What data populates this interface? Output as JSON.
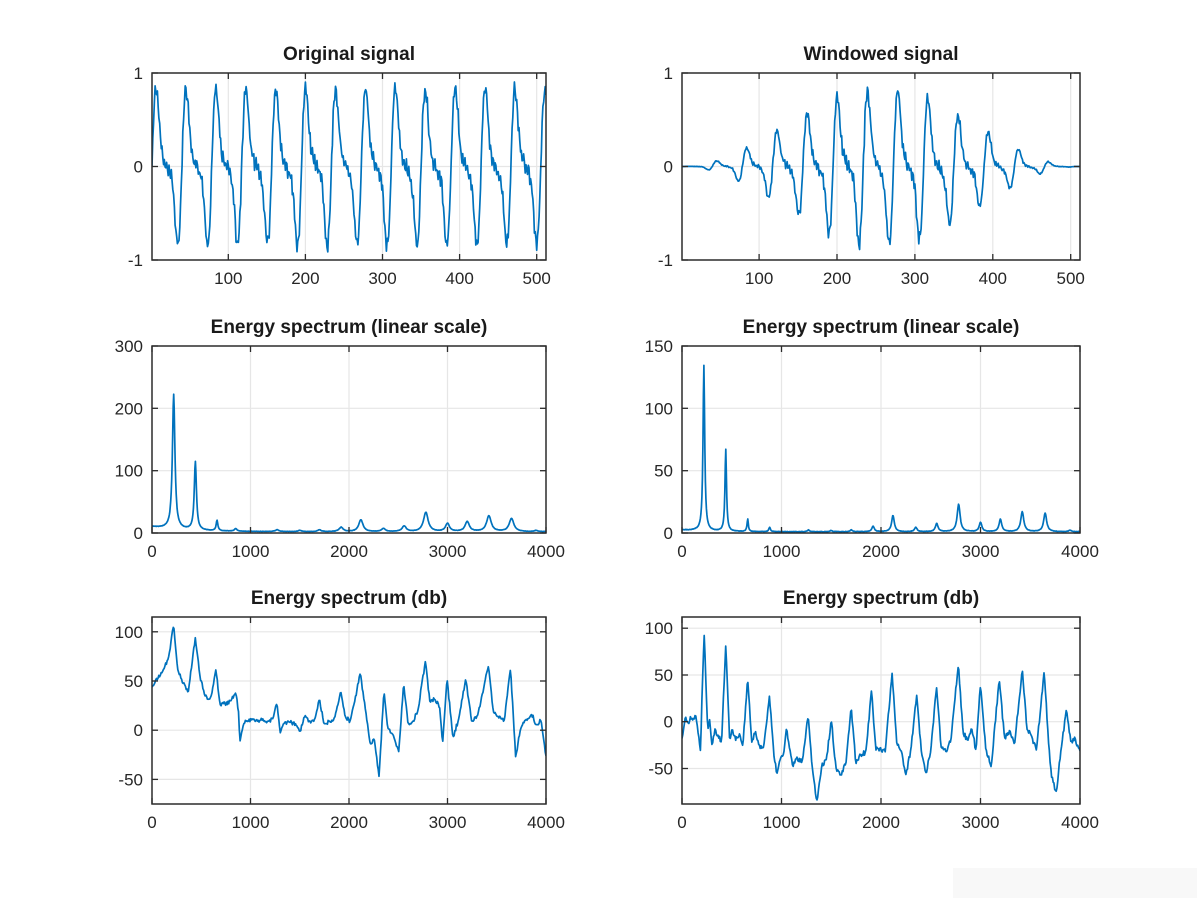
{
  "figure": {
    "line_color": "#0072BD",
    "grid_color": "#e6e6e6",
    "axis_color": "#2b2b2b",
    "text_color": "#262626",
    "title_color": "#1a1a1a",
    "background": "#ffffff",
    "watermark_color": "#f8f8f8"
  },
  "chart_data": [
    {
      "slot": 0,
      "type": "line",
      "title": "Original signal",
      "xlim": [
        1,
        512
      ],
      "ylim": [
        -1,
        1
      ],
      "xticks": [
        100,
        200,
        300,
        400,
        500
      ],
      "yticks": [
        -1,
        0,
        1
      ],
      "grid": true,
      "series": {
        "gen": "harmonic",
        "n": 512,
        "periods": 13.2,
        "harmonics": [
          [
            1,
            0.55,
            0
          ],
          [
            2,
            0.37,
            0
          ],
          [
            3,
            0.1,
            0
          ]
        ],
        "ripple": [
          168,
          0.05
        ],
        "noise": 0.05,
        "seed": 11
      }
    },
    {
      "slot": 1,
      "type": "line",
      "title": "Windowed signal",
      "xlim": [
        1,
        512
      ],
      "ylim": [
        -1,
        1
      ],
      "xticks": [
        100,
        200,
        300,
        400,
        500
      ],
      "yticks": [
        -1,
        0,
        1
      ],
      "grid": true,
      "series": {
        "gen": "harmonic",
        "n": 512,
        "periods": 13.2,
        "harmonics": [
          [
            1,
            0.55,
            0
          ],
          [
            2,
            0.37,
            0
          ],
          [
            3,
            0.1,
            0
          ]
        ],
        "ripple": [
          168,
          0.05
        ],
        "noise": 0.05,
        "seed": 11,
        "window": "hann"
      }
    },
    {
      "slot": 2,
      "type": "line",
      "title": "Energy spectrum (linear scale)",
      "xlim": [
        0,
        4000
      ],
      "ylim": [
        0,
        300
      ],
      "xticks": [
        0,
        1000,
        2000,
        3000,
        4000
      ],
      "yticks": [
        0,
        100,
        200,
        300
      ],
      "grid": true,
      "series": {
        "gen": "peaks",
        "samples": 800,
        "floor": [
          1.8,
          8,
          350
        ],
        "noise": 0.5,
        "seed": 5,
        "peaks": [
          [
            220,
            216,
            15
          ],
          [
            440,
            110,
            13
          ],
          [
            660,
            17,
            10
          ],
          [
            850,
            4,
            16
          ],
          [
            1270,
            3,
            20
          ],
          [
            1500,
            2,
            20
          ],
          [
            1700,
            3,
            20
          ],
          [
            1920,
            7,
            24
          ],
          [
            2120,
            19,
            26
          ],
          [
            2350,
            5,
            22
          ],
          [
            2560,
            9,
            24
          ],
          [
            2780,
            31,
            28
          ],
          [
            3000,
            13,
            24
          ],
          [
            3200,
            16,
            26
          ],
          [
            3420,
            25,
            28
          ],
          [
            3650,
            21,
            28
          ],
          [
            3900,
            2,
            20
          ]
        ]
      }
    },
    {
      "slot": 3,
      "type": "line",
      "title": "Energy spectrum (linear scale)",
      "xlim": [
        0,
        4000
      ],
      "ylim": [
        0,
        150
      ],
      "xticks": [
        0,
        1000,
        2000,
        3000,
        4000
      ],
      "yticks": [
        0,
        50,
        100,
        150
      ],
      "grid": true,
      "series": {
        "gen": "peaks",
        "samples": 800,
        "floor": [
          0.8,
          1.5,
          250
        ],
        "noise": 0.35,
        "seed": 6,
        "peaks": [
          [
            220,
            133,
            10
          ],
          [
            440,
            66,
            9
          ],
          [
            660,
            10,
            8
          ],
          [
            880,
            3.5,
            10
          ],
          [
            1270,
            1.5,
            13
          ],
          [
            1500,
            1,
            13
          ],
          [
            1700,
            1.5,
            13
          ],
          [
            1920,
            4.5,
            15
          ],
          [
            2120,
            13,
            16
          ],
          [
            2350,
            3.5,
            15
          ],
          [
            2560,
            6.5,
            16
          ],
          [
            2780,
            22,
            18
          ],
          [
            3000,
            7.5,
            16
          ],
          [
            3200,
            10,
            16
          ],
          [
            3420,
            16,
            18
          ],
          [
            3650,
            15,
            18
          ],
          [
            3900,
            1.2,
            15
          ]
        ]
      }
    },
    {
      "slot": 4,
      "type": "line",
      "title": "Energy spectrum (db)",
      "xlim": [
        0,
        4000
      ],
      "ylim": [
        -75,
        115
      ],
      "xticks": [
        0,
        1000,
        2000,
        3000,
        4000
      ],
      "yticks": [
        -50,
        0,
        50,
        100
      ],
      "grid": true,
      "series": {
        "gen": "keypoints",
        "samples": 520,
        "jitter": 2.2,
        "seed": 21,
        "points": [
          [
            0,
            44
          ],
          [
            120,
            62
          ],
          [
            170,
            75
          ],
          [
            220,
            107
          ],
          [
            260,
            62
          ],
          [
            310,
            48
          ],
          [
            370,
            40
          ],
          [
            440,
            95
          ],
          [
            490,
            52
          ],
          [
            520,
            42
          ],
          [
            560,
            31
          ],
          [
            600,
            34
          ],
          [
            648,
            62
          ],
          [
            690,
            26
          ],
          [
            740,
            27
          ],
          [
            800,
            30
          ],
          [
            850,
            38
          ],
          [
            878,
            20
          ],
          [
            892,
            -12
          ],
          [
            930,
            6
          ],
          [
            960,
            10
          ],
          [
            1020,
            11
          ],
          [
            1100,
            10
          ],
          [
            1180,
            9
          ],
          [
            1230,
            12
          ],
          [
            1268,
            28
          ],
          [
            1300,
            -3
          ],
          [
            1340,
            7
          ],
          [
            1400,
            8
          ],
          [
            1460,
            6
          ],
          [
            1500,
            -2
          ],
          [
            1555,
            15
          ],
          [
            1610,
            7
          ],
          [
            1655,
            12
          ],
          [
            1700,
            32
          ],
          [
            1745,
            6
          ],
          [
            1800,
            9
          ],
          [
            1855,
            13
          ],
          [
            1915,
            40
          ],
          [
            1960,
            14
          ],
          [
            2010,
            9
          ],
          [
            2055,
            28
          ],
          [
            2115,
            58
          ],
          [
            2165,
            22
          ],
          [
            2215,
            -14
          ],
          [
            2255,
            -8
          ],
          [
            2305,
            -47
          ],
          [
            2355,
            40
          ],
          [
            2395,
            2
          ],
          [
            2445,
            -4
          ],
          [
            2505,
            -22
          ],
          [
            2555,
            48
          ],
          [
            2600,
            6
          ],
          [
            2650,
            9
          ],
          [
            2700,
            20
          ],
          [
            2775,
            70
          ],
          [
            2820,
            30
          ],
          [
            2870,
            31
          ],
          [
            2920,
            24
          ],
          [
            2950,
            -14
          ],
          [
            2995,
            53
          ],
          [
            3055,
            -8
          ],
          [
            3115,
            12
          ],
          [
            3185,
            52
          ],
          [
            3245,
            9
          ],
          [
            3305,
            15
          ],
          [
            3415,
            65
          ],
          [
            3465,
            19
          ],
          [
            3520,
            13
          ],
          [
            3575,
            9
          ],
          [
            3640,
            63
          ],
          [
            3692,
            -27
          ],
          [
            3740,
            1
          ],
          [
            3800,
            11
          ],
          [
            3855,
            16
          ],
          [
            3905,
            5
          ],
          [
            3950,
            10
          ],
          [
            4000,
            -26
          ]
        ]
      }
    },
    {
      "slot": 5,
      "type": "line",
      "title": "Energy spectrum (db)",
      "xlim": [
        0,
        4000
      ],
      "ylim": [
        -88,
        112
      ],
      "xticks": [
        0,
        1000,
        2000,
        3000,
        4000
      ],
      "yticks": [
        -50,
        0,
        50,
        100
      ],
      "grid": true,
      "series": {
        "gen": "keypoints",
        "samples": 520,
        "jitter": 3,
        "seed": 22,
        "points": [
          [
            0,
            -18
          ],
          [
            30,
            4
          ],
          [
            60,
            -2
          ],
          [
            85,
            6
          ],
          [
            110,
            2
          ],
          [
            135,
            7
          ],
          [
            160,
            -10
          ],
          [
            185,
            -30
          ],
          [
            222,
            97
          ],
          [
            258,
            -8
          ],
          [
            278,
            3
          ],
          [
            300,
            -24
          ],
          [
            330,
            -8
          ],
          [
            365,
            -15
          ],
          [
            398,
            -22
          ],
          [
            440,
            83
          ],
          [
            478,
            -18
          ],
          [
            508,
            -8
          ],
          [
            540,
            -20
          ],
          [
            575,
            -12
          ],
          [
            612,
            -26
          ],
          [
            660,
            47
          ],
          [
            700,
            -22
          ],
          [
            735,
            -12
          ],
          [
            775,
            -25
          ],
          [
            820,
            -28
          ],
          [
            878,
            28
          ],
          [
            925,
            -38
          ],
          [
            955,
            -55
          ],
          [
            988,
            -40
          ],
          [
            1020,
            -35
          ],
          [
            1050,
            -7
          ],
          [
            1082,
            -30
          ],
          [
            1112,
            -48
          ],
          [
            1152,
            -38
          ],
          [
            1205,
            -44
          ],
          [
            1268,
            7
          ],
          [
            1312,
            -52
          ],
          [
            1355,
            -85
          ],
          [
            1402,
            -48
          ],
          [
            1452,
            -40
          ],
          [
            1500,
            2
          ],
          [
            1548,
            -50
          ],
          [
            1592,
            -58
          ],
          [
            1648,
            -45
          ],
          [
            1700,
            16
          ],
          [
            1748,
            -45
          ],
          [
            1795,
            -35
          ],
          [
            1848,
            -32
          ],
          [
            1905,
            34
          ],
          [
            1948,
            -30
          ],
          [
            1992,
            -28
          ],
          [
            2042,
            -32
          ],
          [
            2112,
            52
          ],
          [
            2158,
            -22
          ],
          [
            2202,
            -30
          ],
          [
            2252,
            -58
          ],
          [
            2302,
            -28
          ],
          [
            2358,
            28
          ],
          [
            2405,
            -32
          ],
          [
            2452,
            -55
          ],
          [
            2502,
            -30
          ],
          [
            2558,
            38
          ],
          [
            2605,
            -28
          ],
          [
            2652,
            -32
          ],
          [
            2702,
            -20
          ],
          [
            2778,
            62
          ],
          [
            2825,
            -12
          ],
          [
            2872,
            -20
          ],
          [
            2916,
            -8
          ],
          [
            2955,
            -32
          ],
          [
            3000,
            40
          ],
          [
            3052,
            -28
          ],
          [
            3108,
            -48
          ],
          [
            3188,
            46
          ],
          [
            3242,
            -18
          ],
          [
            3292,
            -10
          ],
          [
            3342,
            -25
          ],
          [
            3420,
            57
          ],
          [
            3468,
            -8
          ],
          [
            3512,
            -15
          ],
          [
            3562,
            -30
          ],
          [
            3640,
            54
          ],
          [
            3685,
            -25
          ],
          [
            3712,
            -58
          ],
          [
            3762,
            -75
          ],
          [
            3812,
            -28
          ],
          [
            3862,
            12
          ],
          [
            3908,
            -22
          ],
          [
            3952,
            -18
          ],
          [
            4000,
            -32
          ]
        ]
      }
    }
  ]
}
